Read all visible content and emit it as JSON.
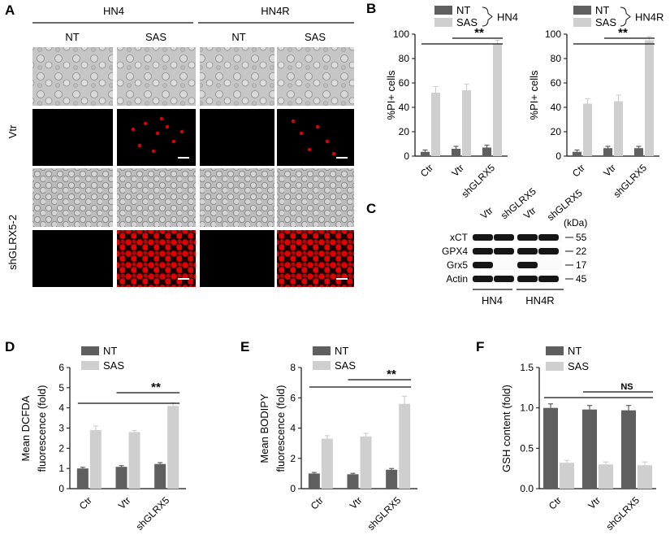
{
  "colors": {
    "nt": "#5f5f5f",
    "sas": "#cfcfcf",
    "fluor": "#e00000",
    "bf": "#c4c4c4"
  },
  "panelA": {
    "label": "A",
    "groups": [
      "HN4",
      "HN4R"
    ],
    "conditions": [
      "NT",
      "SAS",
      "NT",
      "SAS"
    ],
    "rows": [
      "Vtr",
      "shGLRX5-2"
    ]
  },
  "panelB": {
    "label": "B"
  },
  "panelC": {
    "label": "C",
    "lanes": [
      "Vtr",
      "shGLRX5",
      "Vtr",
      "shGLRX5"
    ],
    "kda": "(kDa)",
    "proteins": [
      "xCT",
      "GPX4",
      "Grx5",
      "Actin"
    ],
    "weights": [
      "55",
      "22",
      "17",
      "45"
    ],
    "groups": [
      "HN4",
      "HN4R"
    ]
  },
  "panelD": {
    "label": "D"
  },
  "panelE": {
    "label": "E"
  },
  "panelF": {
    "label": "F"
  },
  "chart_data": [
    {
      "id": "B1",
      "type": "bar",
      "categories": [
        "Ctr",
        "Vtr",
        "shGLRX5"
      ],
      "series": [
        {
          "name": "NT",
          "values": [
            3.5,
            6,
            7
          ],
          "errors": [
            1.5,
            2,
            2
          ]
        },
        {
          "name": "SAS",
          "values": [
            52,
            54,
            92
          ],
          "errors": [
            5,
            5,
            3
          ]
        }
      ],
      "ylabel": "%PI+ cells",
      "ylim": [
        0,
        100
      ],
      "yticks": [
        0,
        20,
        40,
        60,
        80,
        100
      ],
      "legend": [
        "NT",
        "SAS"
      ],
      "legend_group": "HN4",
      "sig": [
        "**"
      ]
    },
    {
      "id": "B2",
      "type": "bar",
      "categories": [
        "Ctr",
        "Vtr",
        "shGLRX5"
      ],
      "series": [
        {
          "name": "NT",
          "values": [
            3.5,
            6.5,
            6.5
          ],
          "errors": [
            1.5,
            1.5,
            1.5
          ]
        },
        {
          "name": "SAS",
          "values": [
            43,
            45,
            95
          ],
          "errors": [
            4,
            5,
            3
          ]
        }
      ],
      "ylabel": "%PI+ cells",
      "ylim": [
        0,
        100
      ],
      "yticks": [
        0,
        20,
        40,
        60,
        80,
        100
      ],
      "legend": [
        "NT",
        "SAS"
      ],
      "legend_group": "HN4R",
      "sig": [
        "**"
      ]
    },
    {
      "id": "D",
      "type": "bar",
      "categories": [
        "Ctr",
        "Vtr",
        "shGLRX5"
      ],
      "series": [
        {
          "name": "NT",
          "values": [
            1.0,
            1.08,
            1.22
          ],
          "errors": [
            0.06,
            0.06,
            0.07
          ]
        },
        {
          "name": "SAS",
          "values": [
            2.9,
            2.8,
            4.1
          ],
          "errors": [
            0.2,
            0.08,
            0.15
          ]
        }
      ],
      "ylabel": "Mean DCFDA fluorescence (fold)",
      "ylabel_lines": [
        "Mean DCFDA",
        "fluorescence (fold)"
      ],
      "ylim": [
        0,
        6
      ],
      "yticks": [
        0,
        1,
        2,
        3,
        4,
        5,
        6
      ],
      "legend": [
        "NT",
        "SAS"
      ],
      "sig": [
        "**"
      ]
    },
    {
      "id": "E",
      "type": "bar",
      "categories": [
        "Ctr",
        "Vtr",
        "shGLRX5"
      ],
      "series": [
        {
          "name": "NT",
          "values": [
            1.0,
            0.95,
            1.25
          ],
          "errors": [
            0.07,
            0.06,
            0.08
          ]
        },
        {
          "name": "SAS",
          "values": [
            3.3,
            3.45,
            5.6
          ],
          "errors": [
            0.2,
            0.2,
            0.5
          ]
        }
      ],
      "ylabel": "Mean BODIPY fluorescence (fold)",
      "ylabel_lines": [
        "Mean BODIPY",
        "fluorescence (fold)"
      ],
      "ylim": [
        0,
        8
      ],
      "yticks": [
        0,
        2,
        4,
        6,
        8
      ],
      "legend": [
        "NT",
        "SAS"
      ],
      "sig": [
        "**"
      ]
    },
    {
      "id": "F",
      "type": "bar",
      "categories": [
        "Ctr",
        "Vtr",
        "shGLRX5"
      ],
      "series": [
        {
          "name": "NT",
          "values": [
            1.0,
            0.98,
            0.97
          ],
          "errors": [
            0.05,
            0.05,
            0.06
          ]
        },
        {
          "name": "SAS",
          "values": [
            0.32,
            0.3,
            0.29
          ],
          "errors": [
            0.03,
            0.03,
            0.04
          ]
        }
      ],
      "ylabel": "GSH content (fold)",
      "ylim": [
        0,
        1.5
      ],
      "yticks": [
        "0.0",
        "0.5",
        "1.0",
        "1.5"
      ],
      "legend": [
        "NT",
        "SAS"
      ],
      "sig": [
        "NS"
      ]
    }
  ]
}
